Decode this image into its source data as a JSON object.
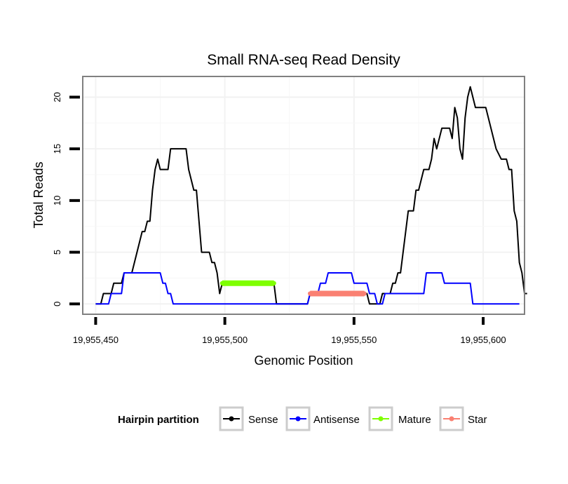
{
  "chart_data": {
    "type": "line",
    "title": "Small RNA-seq Read Density",
    "xlabel": "Genomic Position",
    "ylabel": "Total Reads",
    "xlim": [
      19955445,
      19955616
    ],
    "ylim": [
      -1,
      22
    ],
    "x_ticks": [
      19955450,
      19955500,
      19955550,
      19955600
    ],
    "x_tick_labels": [
      "19,955,450",
      "19,955,500",
      "19,955,550",
      "19,955,600"
    ],
    "y_ticks": [
      0,
      5,
      10,
      15,
      20
    ],
    "y_tick_labels": [
      "0",
      "5",
      "10",
      "15",
      "20"
    ],
    "grid": true,
    "legend_title": "Hairpin partition",
    "legend_position": "bottom",
    "series": [
      {
        "name": "Sense",
        "color": "#000000",
        "points": [
          [
            19955450,
            0
          ],
          [
            19955452,
            0
          ],
          [
            19955453,
            1
          ],
          [
            19955456,
            1
          ],
          [
            19955457,
            2
          ],
          [
            19955460,
            2
          ],
          [
            19955461,
            3
          ],
          [
            19955464,
            3
          ],
          [
            19955466,
            5
          ],
          [
            19955468,
            7
          ],
          [
            19955469,
            7
          ],
          [
            19955470,
            8
          ],
          [
            19955471,
            8
          ],
          [
            19955472,
            11
          ],
          [
            19955473,
            13
          ],
          [
            19955474,
            14
          ],
          [
            19955475,
            13
          ],
          [
            19955478,
            13
          ],
          [
            19955479,
            15
          ],
          [
            19955485,
            15
          ],
          [
            19955486,
            13
          ],
          [
            19955488,
            11
          ],
          [
            19955489,
            11
          ],
          [
            19955491,
            5
          ],
          [
            19955494,
            5
          ],
          [
            19955495,
            4
          ],
          [
            19955496,
            4
          ],
          [
            19955497,
            3
          ],
          [
            19955498,
            1
          ],
          [
            19955499,
            2
          ],
          [
            19955510,
            2
          ],
          [
            19955519,
            2
          ],
          [
            19955520,
            0
          ],
          [
            19955532,
            0
          ],
          [
            19955533,
            1
          ],
          [
            19955544,
            1
          ],
          [
            19955547,
            1
          ],
          [
            19955555,
            1
          ],
          [
            19955556,
            0
          ],
          [
            19955560,
            0
          ],
          [
            19955561,
            1
          ],
          [
            19955564,
            1
          ],
          [
            19955565,
            2
          ],
          [
            19955566,
            2
          ],
          [
            19955567,
            3
          ],
          [
            19955568,
            3
          ],
          [
            19955570,
            7
          ],
          [
            19955571,
            9
          ],
          [
            19955573,
            9
          ],
          [
            19955574,
            11
          ],
          [
            19955575,
            11
          ],
          [
            19955576,
            12
          ],
          [
            19955577,
            13
          ],
          [
            19955579,
            13
          ],
          [
            19955580,
            14
          ],
          [
            19955581,
            16
          ],
          [
            19955582,
            15
          ],
          [
            19955583,
            16
          ],
          [
            19955584,
            17
          ],
          [
            19955587,
            17
          ],
          [
            19955588,
            16
          ],
          [
            19955589,
            19
          ],
          [
            19955590,
            18
          ],
          [
            19955591,
            15
          ],
          [
            19955592,
            14
          ],
          [
            19955593,
            18
          ],
          [
            19955594,
            20
          ],
          [
            19955595,
            21
          ],
          [
            19955596,
            20
          ],
          [
            19955597,
            19
          ],
          [
            19955601,
            19
          ],
          [
            19955605,
            15
          ],
          [
            19955607,
            14
          ],
          [
            19955609,
            14
          ],
          [
            19955610,
            13
          ],
          [
            19955611,
            13
          ],
          [
            19955612,
            9
          ],
          [
            19955613,
            8
          ],
          [
            19955614,
            4
          ],
          [
            19955615,
            3
          ],
          [
            19955616,
            1
          ],
          [
            19955617,
            1
          ]
        ]
      },
      {
        "name": "Antisense",
        "color": "#0000ff",
        "points": [
          [
            19955450,
            0
          ],
          [
            19955455,
            0
          ],
          [
            19955456,
            1
          ],
          [
            19955460,
            1
          ],
          [
            19955461,
            3
          ],
          [
            19955475,
            3
          ],
          [
            19955476,
            2
          ],
          [
            19955477,
            2
          ],
          [
            19955478,
            1
          ],
          [
            19955479,
            1
          ],
          [
            19955480,
            0
          ],
          [
            19955532,
            0
          ],
          [
            19955533,
            1
          ],
          [
            19955536,
            1
          ],
          [
            19955537,
            2
          ],
          [
            19955539,
            2
          ],
          [
            19955540,
            3
          ],
          [
            19955549,
            3
          ],
          [
            19955550,
            2
          ],
          [
            19955555,
            2
          ],
          [
            19955556,
            1
          ],
          [
            19955558,
            1
          ],
          [
            19955559,
            0
          ],
          [
            19955561,
            0
          ],
          [
            19955562,
            1
          ],
          [
            19955564,
            1
          ],
          [
            19955565,
            1
          ],
          [
            19955577,
            1
          ],
          [
            19955578,
            3
          ],
          [
            19955584,
            3
          ],
          [
            19955585,
            2
          ],
          [
            19955595,
            2
          ],
          [
            19955596,
            0
          ],
          [
            19955614,
            0
          ]
        ]
      },
      {
        "name": "Mature",
        "color": "#7fff00",
        "points": [
          [
            19955499,
            2
          ],
          [
            19955519,
            2
          ]
        ]
      },
      {
        "name": "Star",
        "color": "#fa8072",
        "points": [
          [
            19955533,
            1
          ],
          [
            19955554,
            1
          ]
        ]
      }
    ]
  }
}
